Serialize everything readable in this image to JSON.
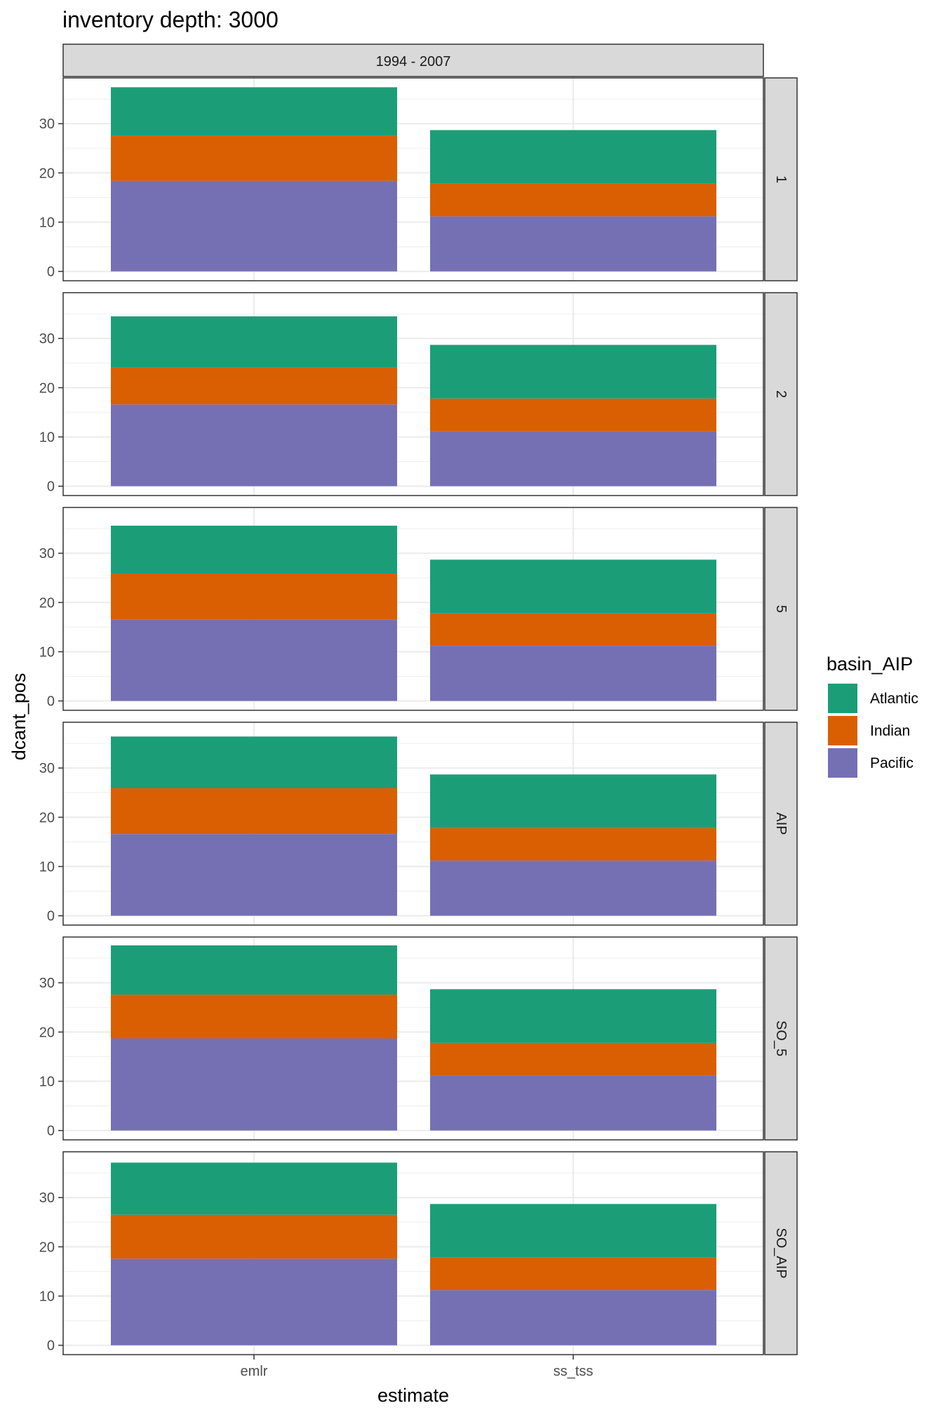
{
  "chart_data": {
    "type": "bar",
    "stacked": true,
    "title": "inventory depth: 3000",
    "column_strip": "1994 - 2007",
    "xlabel": "estimate",
    "ylabel": "dcant_pos",
    "categories": [
      "emlr",
      "ss_tss"
    ],
    "y_ticks": [
      0,
      10,
      20,
      30
    ],
    "ylim": [
      -1.9,
      39.3
    ],
    "grid": true,
    "legend": {
      "title": "basin_AIP",
      "position": "right",
      "items": [
        {
          "name": "Atlantic",
          "color": "#1B9E77"
        },
        {
          "name": "Indian",
          "color": "#D95F02"
        },
        {
          "name": "Pacific",
          "color": "#7570B3"
        }
      ]
    },
    "stack_order": [
      "Pacific",
      "Indian",
      "Atlantic"
    ],
    "panels": [
      {
        "label": "1",
        "values": {
          "emlr": {
            "Pacific": 18.4,
            "Indian": 9.2,
            "Atlantic": 9.8
          },
          "ss_tss": {
            "Pacific": 11.2,
            "Indian": 6.6,
            "Atlantic": 10.9
          }
        }
      },
      {
        "label": "2",
        "values": {
          "emlr": {
            "Pacific": 16.6,
            "Indian": 7.5,
            "Atlantic": 10.4
          },
          "ss_tss": {
            "Pacific": 11.2,
            "Indian": 6.6,
            "Atlantic": 10.9
          }
        }
      },
      {
        "label": "5",
        "values": {
          "emlr": {
            "Pacific": 16.6,
            "Indian": 9.3,
            "Atlantic": 9.7
          },
          "ss_tss": {
            "Pacific": 11.2,
            "Indian": 6.6,
            "Atlantic": 10.9
          }
        }
      },
      {
        "label": "AIP",
        "values": {
          "emlr": {
            "Pacific": 16.6,
            "Indian": 9.3,
            "Atlantic": 10.5
          },
          "ss_tss": {
            "Pacific": 11.2,
            "Indian": 6.6,
            "Atlantic": 10.9
          }
        }
      },
      {
        "label": "SO_5",
        "values": {
          "emlr": {
            "Pacific": 18.7,
            "Indian": 8.9,
            "Atlantic": 10.0
          },
          "ss_tss": {
            "Pacific": 11.2,
            "Indian": 6.6,
            "Atlantic": 10.9
          }
        }
      },
      {
        "label": "SO_AIP",
        "values": {
          "emlr": {
            "Pacific": 17.6,
            "Indian": 8.9,
            "Atlantic": 10.6
          },
          "ss_tss": {
            "Pacific": 11.2,
            "Indian": 6.6,
            "Atlantic": 10.9
          }
        }
      }
    ]
  }
}
